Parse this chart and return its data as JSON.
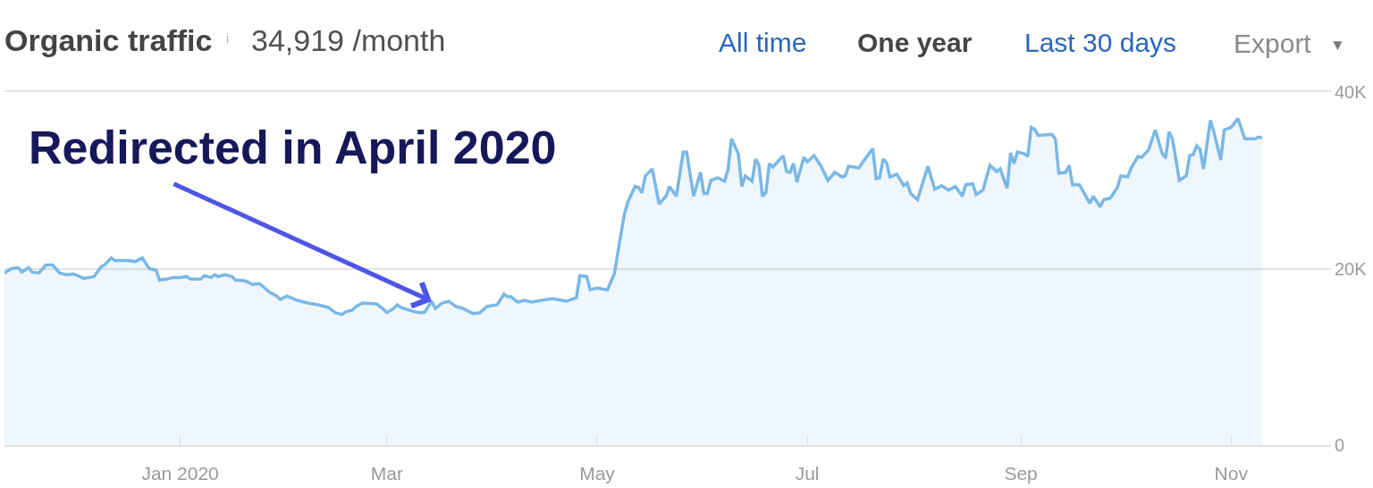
{
  "chart_data": {
    "type": "area",
    "title": "Organic traffic",
    "subtitle": "34,919 /month",
    "annotations": [
      {
        "text": "Redirected in April 2020",
        "x": "2020-03-14",
        "y": 16300
      },
      "i",
      "All time",
      "One year",
      "Last 30 days",
      "Export",
      "▼"
    ],
    "x": [
      "2019-11-11",
      "2019-11-13",
      "2019-11-15",
      "2019-11-16",
      "2019-11-18",
      "2019-11-19",
      "2019-11-21",
      "2019-11-23",
      "2019-11-25",
      "2019-11-27",
      "2019-11-29",
      "2019-12-01",
      "2019-12-04",
      "2019-12-07",
      "2019-12-09",
      "2019-12-10",
      "2019-12-12",
      "2019-12-13",
      "2019-12-17",
      "2019-12-19",
      "2019-12-21",
      "2019-12-23",
      "2019-12-25",
      "2019-12-26",
      "2019-12-28",
      "2019-12-30",
      "2020-01-01",
      "2020-01-03",
      "2020-01-04",
      "2020-01-07",
      "2020-01-08",
      "2020-01-10",
      "2020-01-11",
      "2020-01-12",
      "2020-01-14",
      "2020-01-16",
      "2020-01-17",
      "2020-01-20",
      "2020-01-22",
      "2020-01-24",
      "2020-01-27",
      "2020-01-29",
      "2020-01-30",
      "2020-02-01",
      "2020-02-04",
      "2020-02-07",
      "2020-02-10",
      "2020-02-13",
      "2020-02-15",
      "2020-02-17",
      "2020-02-18",
      "2020-02-20",
      "2020-02-21",
      "2020-02-23",
      "2020-02-27",
      "2020-02-29",
      "2020-03-01",
      "2020-03-03",
      "2020-03-04",
      "2020-03-05",
      "2020-03-09",
      "2020-03-11",
      "2020-03-12",
      "2020-03-14",
      "2020-03-15",
      "2020-03-17",
      "2020-03-19",
      "2020-03-21",
      "2020-03-23",
      "2020-03-26",
      "2020-03-28",
      "2020-03-30",
      "2020-04-02",
      "2020-04-04",
      "2020-04-05",
      "2020-04-06",
      "2020-04-08",
      "2020-04-10",
      "2020-04-12",
      "2020-04-18",
      "2020-04-22",
      "2020-04-25",
      "2020-04-26",
      "2020-04-28",
      "2020-04-29",
      "2020-05-01",
      "2020-05-04",
      "2020-05-06",
      "2020-05-08",
      "2020-05-09",
      "2020-05-10",
      "2020-05-12",
      "2020-05-13",
      "2020-05-14",
      "2020-05-15",
      "2020-05-17",
      "2020-05-19",
      "2020-05-21",
      "2020-05-22",
      "2020-05-24",
      "2020-05-26",
      "2020-05-27",
      "2020-05-29",
      "2020-05-31",
      "2020-06-01",
      "2020-06-02",
      "2020-06-03",
      "2020-06-05",
      "2020-06-07",
      "2020-06-08",
      "2020-06-09",
      "2020-06-11",
      "2020-06-12",
      "2020-06-13",
      "2020-06-15",
      "2020-06-16",
      "2020-06-17",
      "2020-06-18",
      "2020-06-19",
      "2020-06-20",
      "2020-06-21",
      "2020-06-24",
      "2020-06-25",
      "2020-06-26",
      "2020-06-27",
      "2020-06-28",
      "2020-06-30",
      "2020-07-01",
      "2020-07-03",
      "2020-07-05",
      "2020-07-07",
      "2020-07-09",
      "2020-07-11",
      "2020-07-12",
      "2020-07-13",
      "2020-07-16",
      "2020-07-17",
      "2020-07-20",
      "2020-07-21",
      "2020-07-22",
      "2020-07-23",
      "2020-07-24",
      "2020-07-25",
      "2020-07-27",
      "2020-07-29",
      "2020-07-30",
      "2020-07-31",
      "2020-08-02",
      "2020-08-05",
      "2020-08-07",
      "2020-08-09",
      "2020-08-11",
      "2020-08-13",
      "2020-08-15",
      "2020-08-16",
      "2020-08-18",
      "2020-08-19",
      "2020-08-21",
      "2020-08-23",
      "2020-08-25",
      "2020-08-26",
      "2020-08-28",
      "2020-08-29",
      "2020-08-30",
      "2020-08-31",
      "2020-09-02",
      "2020-09-03",
      "2020-09-04",
      "2020-09-05",
      "2020-09-06",
      "2020-09-10",
      "2020-09-11",
      "2020-09-12",
      "2020-09-14",
      "2020-09-15",
      "2020-09-16",
      "2020-09-18",
      "2020-09-21",
      "2020-09-22",
      "2020-09-24",
      "2020-09-25",
      "2020-09-27",
      "2020-09-29",
      "2020-09-30",
      "2020-10-02",
      "2020-10-03",
      "2020-10-05",
      "2020-10-06",
      "2020-10-08",
      "2020-10-10",
      "2020-10-12",
      "2020-10-13",
      "2020-10-14",
      "2020-10-15",
      "2020-10-17",
      "2020-10-19",
      "2020-10-20",
      "2020-10-21",
      "2020-10-22",
      "2020-10-23",
      "2020-10-24",
      "2020-10-26",
      "2020-10-27",
      "2020-10-29",
      "2020-10-30",
      "2020-11-01",
      "2020-11-03",
      "2020-11-05",
      "2020-11-08",
      "2020-11-09",
      "2020-11-10"
    ],
    "series": [
      {
        "color": "#7ab8e6",
        "values": [
          19500,
          20000,
          20100,
          19600,
          20100,
          19600,
          19500,
          20400,
          20400,
          19500,
          19300,
          19400,
          18900,
          19100,
          20200,
          20400,
          21200,
          20900,
          20900,
          20800,
          21200,
          20000,
          19800,
          18700,
          18800,
          19000,
          19000,
          19100,
          18800,
          18800,
          19200,
          19000,
          19300,
          19100,
          19300,
          19100,
          18700,
          18600,
          18200,
          18300,
          17300,
          16900,
          16500,
          16900,
          16400,
          16100,
          15900,
          15600,
          15000,
          14800,
          15100,
          15300,
          15700,
          16100,
          16000,
          15400,
          15000,
          15500,
          15900,
          15600,
          15100,
          15000,
          15100,
          16300,
          15500,
          16100,
          16300,
          15700,
          15500,
          14900,
          15000,
          15700,
          15900,
          17100,
          16800,
          16800,
          16200,
          16400,
          16200,
          16600,
          16300,
          16700,
          19200,
          19100,
          17600,
          17800,
          17600,
          19400,
          24100,
          26300,
          27600,
          29300,
          29200,
          28600,
          30500,
          31300,
          27300,
          28200,
          29300,
          28200,
          33200,
          33200,
          28200,
          30900,
          28500,
          28500,
          30000,
          30300,
          29900,
          31200,
          34700,
          33000,
          29300,
          30500,
          29900,
          32400,
          31700,
          28200,
          28600,
          31900,
          31500,
          32800,
          31000,
          30900,
          31900,
          29800,
          32600,
          32100,
          32800,
          31600,
          30000,
          30900,
          30400,
          30500,
          31600,
          31400,
          32000,
          33600,
          30200,
          30300,
          32400,
          32000,
          30400,
          30700,
          29400,
          29700,
          28500,
          27800,
          31600,
          29000,
          29400,
          28900,
          29300,
          28200,
          29500,
          29600,
          28400,
          28900,
          31700,
          31000,
          31300,
          29100,
          33100,
          31900,
          33200,
          33000,
          32700,
          36000,
          35800,
          35100,
          35200,
          34700,
          30800,
          30900,
          31700,
          29500,
          29500,
          27400,
          28200,
          27000,
          27800,
          28000,
          29200,
          30500,
          30400,
          31400,
          32700,
          32600,
          33400,
          35700,
          33100,
          32500,
          35500,
          34700,
          30000,
          30500,
          32800,
          32900,
          33900,
          33500,
          31300,
          36800,
          35500,
          32300,
          35700,
          36000,
          37000,
          34700,
          34700,
          34900,
          34800
        ]
      }
    ],
    "xlim": [
      "2019-11-11",
      "2020-11-30"
    ],
    "xticks": [
      {
        "value": "2020-01-01",
        "label": "Jan 2020"
      },
      {
        "value": "2020-03-01",
        "label": "Mar"
      },
      {
        "value": "2020-05-01",
        "label": "May"
      },
      {
        "value": "2020-07-01",
        "label": "Jul"
      },
      {
        "value": "2020-09-01",
        "label": "Sep"
      },
      {
        "value": "2020-11-01",
        "label": "Nov"
      }
    ],
    "ylim": [
      0,
      40000
    ],
    "yticks": [
      0,
      {
        "value": 20000,
        "label": "20K"
      },
      {
        "value": 40000,
        "label": "40K"
      }
    ],
    "grid": "y"
  }
}
